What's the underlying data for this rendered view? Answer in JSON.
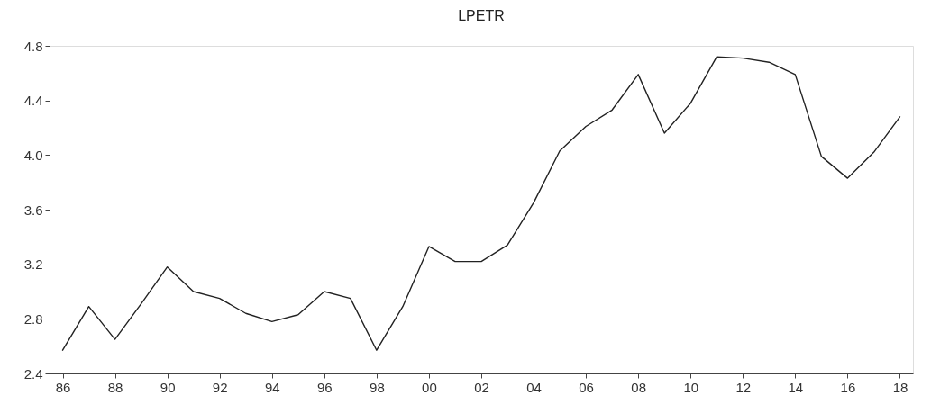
{
  "chart_data": {
    "type": "line",
    "title": "LPETR",
    "x": [
      1986,
      1987,
      1988,
      1989,
      1990,
      1991,
      1992,
      1993,
      1994,
      1995,
      1996,
      1997,
      1998,
      1999,
      2000,
      2001,
      2002,
      2003,
      2004,
      2005,
      2006,
      2007,
      2008,
      2009,
      2010,
      2011,
      2012,
      2013,
      2014,
      2015,
      2016,
      2017,
      2018
    ],
    "series": [
      {
        "color": "#222222",
        "values": [
          2.57,
          2.89,
          2.65,
          2.91,
          3.18,
          3.0,
          2.95,
          2.84,
          2.78,
          2.83,
          3.0,
          2.95,
          2.57,
          2.89,
          3.33,
          3.22,
          3.22,
          3.34,
          3.65,
          4.03,
          4.21,
          4.33,
          4.59,
          4.16,
          4.38,
          4.72,
          4.71,
          4.68,
          4.59,
          3.99,
          3.83,
          4.02,
          4.28
        ]
      }
    ],
    "xlim": [
      1985.5,
      2018.5
    ],
    "xticks": [
      {
        "value": 1986,
        "label": "86"
      },
      {
        "value": 1988,
        "label": "88"
      },
      {
        "value": 1990,
        "label": "90"
      },
      {
        "value": 1992,
        "label": "92"
      },
      {
        "value": 1994,
        "label": "94"
      },
      {
        "value": 1996,
        "label": "96"
      },
      {
        "value": 1998,
        "label": "98"
      },
      {
        "value": 2000,
        "label": "00"
      },
      {
        "value": 2002,
        "label": "02"
      },
      {
        "value": 2004,
        "label": "04"
      },
      {
        "value": 2006,
        "label": "06"
      },
      {
        "value": 2008,
        "label": "08"
      },
      {
        "value": 2010,
        "label": "10"
      },
      {
        "value": 2012,
        "label": "12"
      },
      {
        "value": 2014,
        "label": "14"
      },
      {
        "value": 2016,
        "label": "16"
      },
      {
        "value": 2018,
        "label": "18"
      }
    ],
    "ylim": [
      2.4,
      4.8
    ],
    "yticks": [
      2.4,
      2.8,
      3.2,
      3.6,
      {
        "value": 4,
        "label": "4.0"
      },
      4.4,
      4.8
    ]
  }
}
